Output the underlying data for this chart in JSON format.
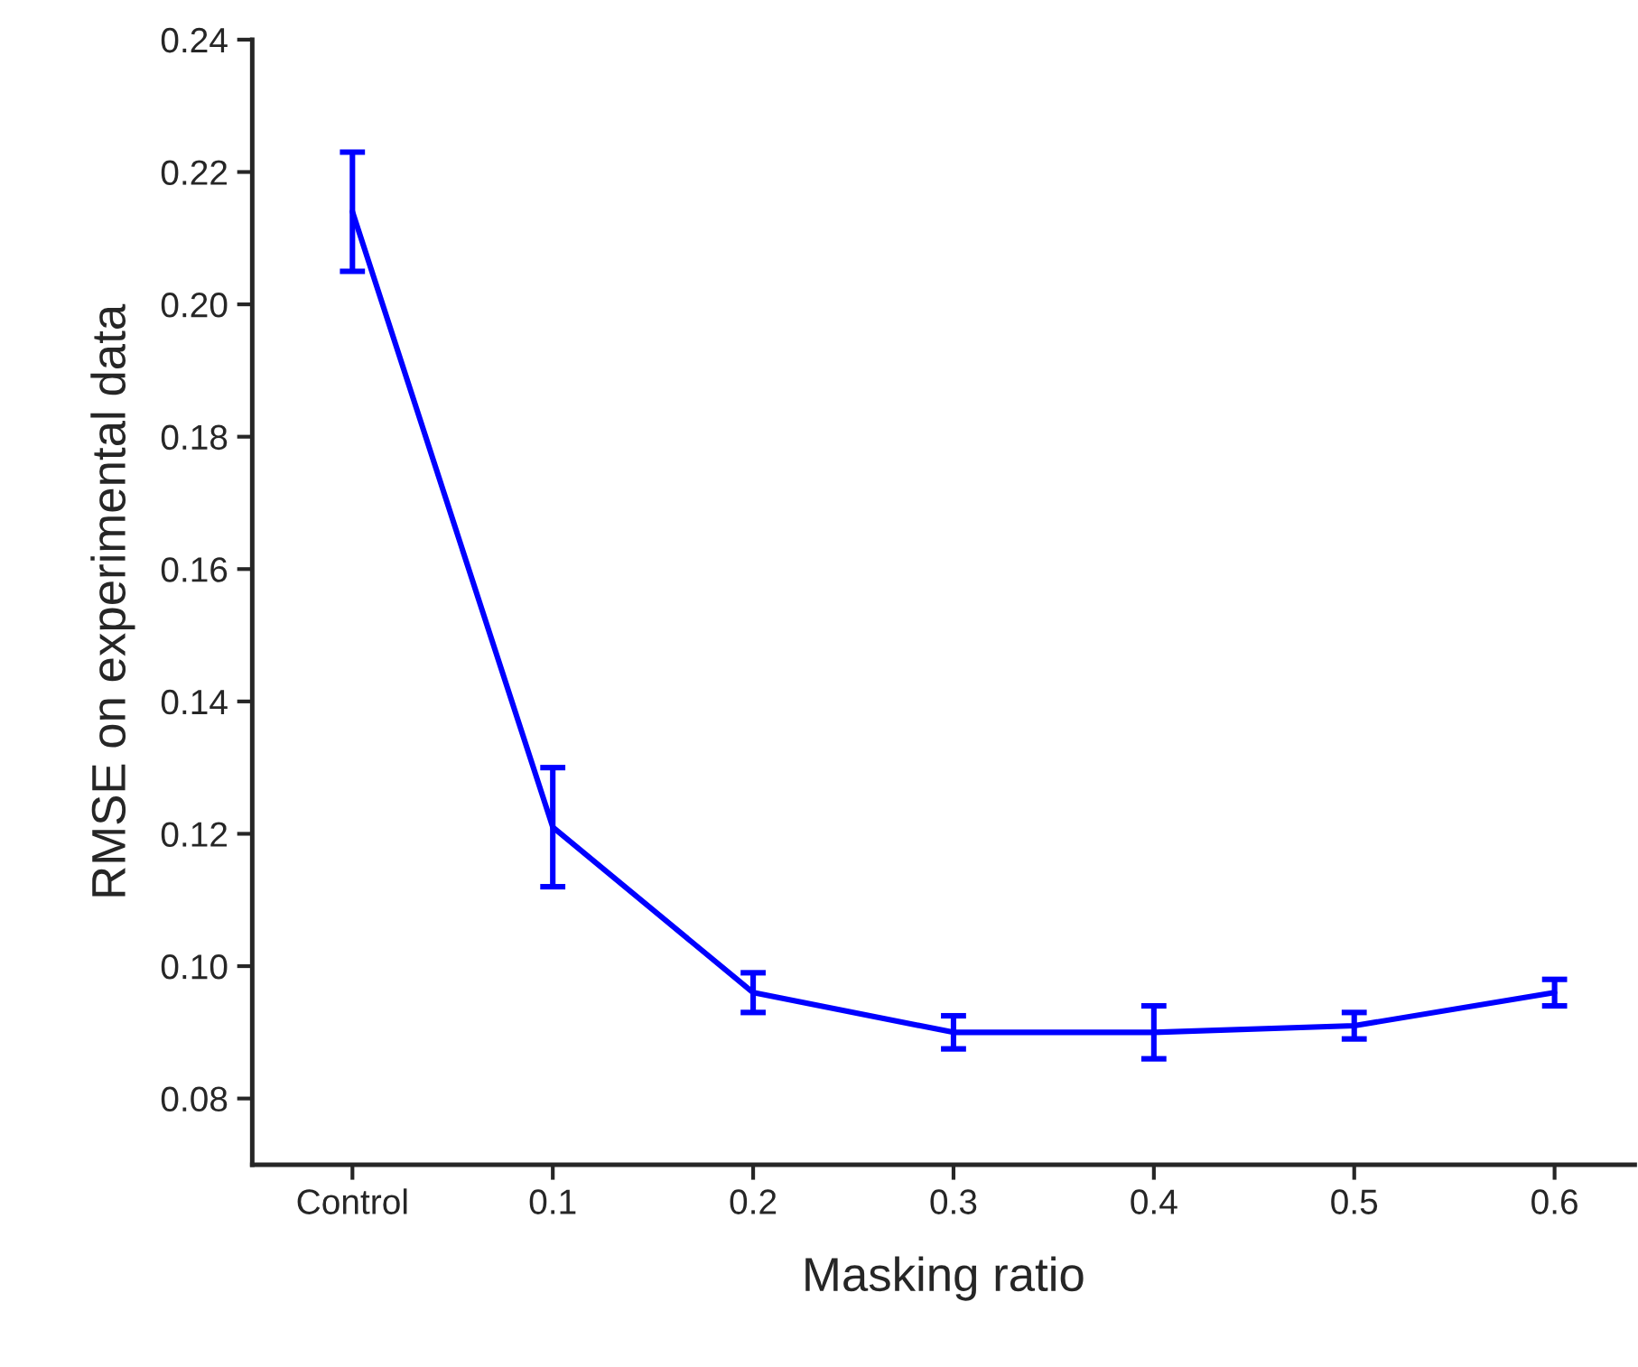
{
  "chart_data": {
    "type": "line",
    "xlabel": "Masking ratio",
    "ylabel": "RMSE on experimental data",
    "categories": [
      "Control",
      "0.1",
      "0.2",
      "0.3",
      "0.4",
      "0.5",
      "0.6"
    ],
    "series": [
      {
        "color": "#0000ff",
        "values": [
          0.214,
          0.121,
          0.096,
          0.09,
          0.09,
          0.091,
          0.096
        ],
        "errors": [
          0.009,
          0.009,
          0.003,
          0.0025,
          0.004,
          0.002,
          0.002
        ]
      }
    ],
    "ylim": [
      0.07,
      0.24
    ],
    "yticks": [
      {
        "value": 0.08,
        "label": "0.08"
      },
      {
        "value": 0.1,
        "label": "0.10"
      },
      {
        "value": 0.12,
        "label": "0.12"
      },
      {
        "value": 0.14,
        "label": "0.14"
      },
      {
        "value": 0.16,
        "label": "0.16"
      },
      {
        "value": 0.18,
        "label": "0.18"
      },
      {
        "value": 0.2,
        "label": "0.20"
      },
      {
        "value": 0.22,
        "label": "0.22"
      },
      {
        "value": 0.24,
        "label": "0.24"
      }
    ],
    "grid": false,
    "marker": "none",
    "line_style": "solid"
  }
}
